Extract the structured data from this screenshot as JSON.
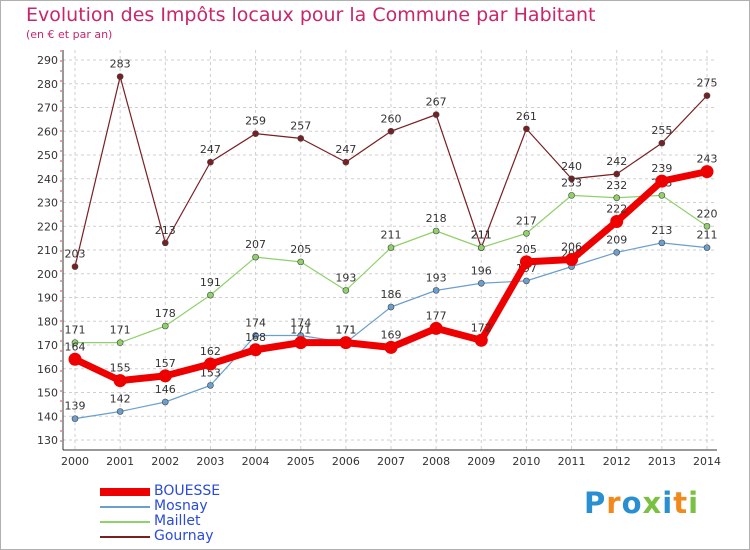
{
  "chart_data": {
    "type": "line",
    "title": "Evolution des Impôts locaux pour la Commune par Habitant",
    "subtitle": "(en € et par an)",
    "xlabel": "",
    "ylabel": "",
    "ylim": [
      130,
      290
    ],
    "ytick_step": 10,
    "grid": true,
    "legend_position": "bottom-left",
    "x": [
      "2000",
      "2001",
      "2002",
      "2003",
      "2004",
      "2005",
      "2006",
      "2007",
      "2008",
      "2009",
      "2010",
      "2011",
      "2012",
      "2013",
      "2014"
    ],
    "series": [
      {
        "name": "Gournay",
        "color": "#7a1f22",
        "values": [
          203,
          283,
          213,
          247,
          259,
          257,
          247,
          260,
          267,
          211,
          261,
          240,
          242,
          255,
          275
        ]
      },
      {
        "name": "Maillet",
        "color": "#8fd16a",
        "values": [
          171,
          171,
          178,
          191,
          207,
          205,
          193,
          211,
          218,
          211,
          217,
          233,
          232,
          233,
          220
        ]
      },
      {
        "name": "Mosnay",
        "color": "#6b9fce",
        "values": [
          139,
          142,
          146,
          153,
          174,
          174,
          171,
          186,
          193,
          196,
          197,
          203,
          209,
          213,
          211
        ]
      },
      {
        "name": "BOUESSE",
        "color": "#ee0000",
        "values": [
          164,
          155,
          157,
          162,
          168,
          171,
          171,
          169,
          177,
          172,
          205,
          206,
          222,
          239,
          243
        ]
      }
    ]
  },
  "legend": {
    "items": [
      {
        "label": "BOUESSE",
        "color": "#ee0000"
      },
      {
        "label": "Mosnay",
        "color": "#6b9fce"
      },
      {
        "label": "Maillet",
        "color": "#8fd16a"
      },
      {
        "label": "Gournay",
        "color": "#7a1f22"
      }
    ]
  },
  "logo": {
    "text": "Proxiti",
    "colors": [
      "#2a8fd0",
      "#f08a1c",
      "#2a8fd0",
      "#7ac142",
      "#2a8fd0",
      "#f08a1c",
      "#7ac142"
    ]
  }
}
